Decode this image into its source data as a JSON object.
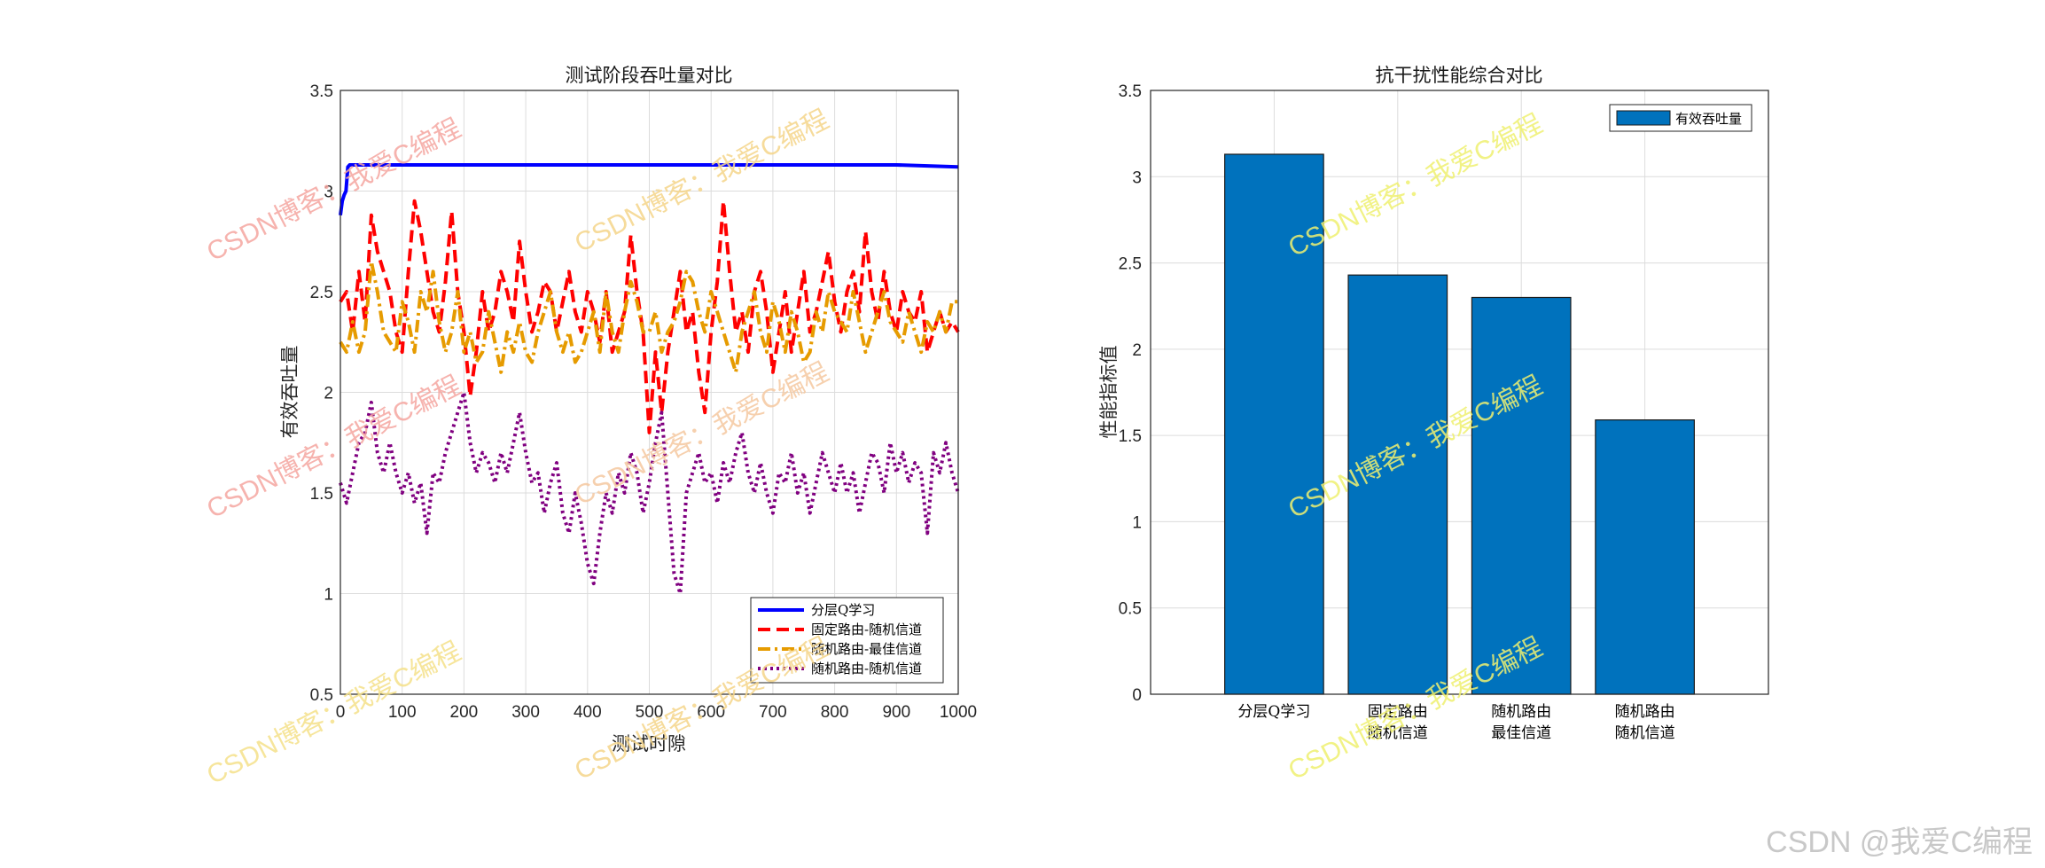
{
  "footer_watermark": "CSDN @我爱C编程",
  "overlay_watermark": "CSDN博客：我爱C编程",
  "chart_data": [
    {
      "type": "line",
      "title": "测试阶段吞吐量对比",
      "xlabel": "测试时隙",
      "ylabel": "有效吞吐量",
      "xlim": [
        0,
        1000
      ],
      "ylim": [
        0.5,
        3.5
      ],
      "xticks": [
        "0",
        "100",
        "200",
        "300",
        "400",
        "500",
        "600",
        "700",
        "800",
        "900",
        "1000"
      ],
      "yticks": [
        "0.5",
        "1",
        "1.5",
        "2",
        "2.5",
        "3",
        "3.5"
      ],
      "grid": true,
      "legend_position": "bottom-right",
      "series": [
        {
          "name": "分层Q学习",
          "color": "#0000ff",
          "style": "solid",
          "x": [
            0,
            3,
            6,
            9,
            12,
            15,
            20,
            40,
            100,
            300,
            500,
            700,
            900,
            1000
          ],
          "y": [
            2.88,
            2.95,
            2.98,
            3.0,
            3.12,
            3.13,
            3.13,
            3.13,
            3.13,
            3.13,
            3.13,
            3.13,
            3.13,
            3.12
          ]
        },
        {
          "name": "固定路由-随机信道",
          "color": "#ff0000",
          "style": "dashed",
          "x": [
            0,
            10,
            20,
            30,
            40,
            50,
            60,
            70,
            80,
            90,
            100,
            110,
            120,
            130,
            140,
            150,
            160,
            170,
            180,
            190,
            200,
            210,
            220,
            230,
            240,
            250,
            260,
            270,
            280,
            290,
            300,
            310,
            320,
            330,
            340,
            350,
            360,
            370,
            380,
            390,
            400,
            410,
            420,
            430,
            440,
            450,
            460,
            470,
            480,
            490,
            500,
            510,
            520,
            530,
            540,
            550,
            560,
            570,
            580,
            590,
            600,
            610,
            620,
            630,
            640,
            650,
            660,
            670,
            680,
            690,
            700,
            710,
            720,
            730,
            740,
            750,
            760,
            770,
            780,
            790,
            800,
            810,
            820,
            830,
            840,
            850,
            860,
            870,
            880,
            890,
            900,
            910,
            920,
            930,
            940,
            950,
            960,
            970,
            980,
            990,
            1000
          ],
          "y": [
            2.45,
            2.5,
            2.3,
            2.6,
            2.35,
            2.88,
            2.7,
            2.6,
            2.5,
            2.3,
            2.2,
            2.6,
            2.95,
            2.8,
            2.6,
            2.4,
            2.3,
            2.55,
            2.9,
            2.5,
            2.3,
            1.98,
            2.2,
            2.5,
            2.3,
            2.4,
            2.6,
            2.5,
            2.35,
            2.75,
            2.5,
            2.3,
            2.4,
            2.55,
            2.5,
            2.3,
            2.45,
            2.6,
            2.4,
            2.3,
            2.5,
            2.4,
            2.25,
            2.5,
            2.2,
            2.3,
            2.4,
            2.78,
            2.5,
            2.3,
            1.8,
            2.2,
            1.9,
            2.2,
            2.4,
            2.6,
            2.3,
            2.4,
            2.1,
            1.9,
            2.3,
            2.55,
            2.95,
            2.6,
            2.3,
            2.4,
            2.2,
            2.5,
            2.6,
            2.4,
            2.1,
            2.3,
            2.5,
            2.2,
            2.4,
            2.6,
            2.3,
            2.4,
            2.55,
            2.7,
            2.45,
            2.3,
            2.5,
            2.6,
            2.4,
            2.8,
            2.5,
            2.35,
            2.6,
            2.4,
            2.3,
            2.5,
            2.4,
            2.35,
            2.5,
            2.2,
            2.3,
            2.4,
            2.3,
            2.35,
            2.3
          ]
        },
        {
          "name": "随机路由-最佳信道",
          "color": "#e69b00",
          "style": "dashdot",
          "x": [
            0,
            10,
            20,
            30,
            40,
            50,
            60,
            70,
            80,
            90,
            100,
            110,
            120,
            130,
            140,
            150,
            160,
            170,
            180,
            190,
            200,
            210,
            220,
            230,
            240,
            250,
            260,
            270,
            280,
            290,
            300,
            310,
            320,
            330,
            340,
            350,
            360,
            370,
            380,
            390,
            400,
            410,
            420,
            430,
            440,
            450,
            460,
            470,
            480,
            490,
            500,
            510,
            520,
            530,
            540,
            550,
            560,
            570,
            580,
            590,
            600,
            610,
            620,
            630,
            640,
            650,
            660,
            670,
            680,
            690,
            700,
            710,
            720,
            730,
            740,
            750,
            760,
            770,
            780,
            790,
            800,
            810,
            820,
            830,
            840,
            850,
            860,
            870,
            880,
            890,
            900,
            910,
            920,
            930,
            940,
            950,
            960,
            970,
            980,
            990,
            1000
          ],
          "y": [
            2.25,
            2.2,
            2.35,
            2.2,
            2.3,
            2.65,
            2.5,
            2.3,
            2.25,
            2.2,
            2.45,
            2.35,
            2.2,
            2.5,
            2.4,
            2.6,
            2.35,
            2.2,
            2.3,
            2.5,
            2.2,
            2.3,
            2.15,
            2.2,
            2.4,
            2.25,
            2.1,
            2.3,
            2.2,
            2.35,
            2.2,
            2.15,
            2.3,
            2.4,
            2.5,
            2.3,
            2.2,
            2.3,
            2.15,
            2.2,
            2.3,
            2.4,
            2.2,
            2.5,
            2.3,
            2.2,
            2.4,
            2.55,
            2.45,
            2.3,
            2.3,
            2.4,
            2.2,
            2.3,
            2.35,
            2.45,
            2.6,
            2.55,
            2.4,
            2.3,
            2.5,
            2.4,
            2.3,
            2.2,
            2.1,
            2.3,
            2.4,
            2.5,
            2.3,
            2.2,
            2.45,
            2.35,
            2.2,
            2.4,
            2.3,
            2.15,
            2.2,
            2.4,
            2.3,
            2.5,
            2.4,
            2.35,
            2.3,
            2.5,
            2.35,
            2.2,
            2.3,
            2.4,
            2.5,
            2.35,
            2.3,
            2.25,
            2.4,
            2.3,
            2.2,
            2.35,
            2.3,
            2.4,
            2.3,
            2.45,
            2.45
          ]
        },
        {
          "name": "随机路由-随机信道",
          "color": "#800080",
          "style": "dotted",
          "x": [
            0,
            10,
            20,
            30,
            40,
            50,
            60,
            70,
            80,
            90,
            100,
            110,
            120,
            130,
            140,
            150,
            160,
            170,
            180,
            190,
            200,
            210,
            220,
            230,
            240,
            250,
            260,
            270,
            280,
            290,
            300,
            310,
            320,
            330,
            340,
            350,
            360,
            370,
            380,
            390,
            400,
            410,
            420,
            430,
            440,
            450,
            460,
            470,
            480,
            490,
            500,
            510,
            520,
            530,
            540,
            550,
            560,
            570,
            580,
            590,
            600,
            610,
            620,
            630,
            640,
            650,
            660,
            670,
            680,
            690,
            700,
            710,
            720,
            730,
            740,
            750,
            760,
            770,
            780,
            790,
            800,
            810,
            820,
            830,
            840,
            850,
            860,
            870,
            880,
            890,
            900,
            910,
            920,
            930,
            940,
            950,
            960,
            970,
            980,
            990,
            1000
          ],
          "y": [
            1.55,
            1.45,
            1.6,
            1.75,
            1.8,
            1.95,
            1.7,
            1.6,
            1.75,
            1.6,
            1.5,
            1.6,
            1.45,
            1.55,
            1.3,
            1.6,
            1.55,
            1.7,
            1.8,
            1.9,
            2.0,
            1.75,
            1.6,
            1.7,
            1.65,
            1.55,
            1.7,
            1.6,
            1.75,
            1.9,
            1.7,
            1.55,
            1.6,
            1.4,
            1.55,
            1.65,
            1.4,
            1.3,
            1.5,
            1.35,
            1.15,
            1.05,
            1.3,
            1.5,
            1.4,
            1.6,
            1.5,
            1.7,
            1.6,
            1.4,
            1.55,
            1.75,
            1.9,
            1.5,
            1.1,
            1.0,
            1.5,
            1.6,
            1.7,
            1.55,
            1.6,
            1.45,
            1.65,
            1.55,
            1.7,
            1.8,
            1.6,
            1.5,
            1.65,
            1.5,
            1.4,
            1.6,
            1.55,
            1.7,
            1.5,
            1.6,
            1.4,
            1.55,
            1.7,
            1.6,
            1.5,
            1.65,
            1.5,
            1.6,
            1.4,
            1.55,
            1.7,
            1.65,
            1.5,
            1.75,
            1.6,
            1.7,
            1.55,
            1.65,
            1.6,
            1.3,
            1.7,
            1.6,
            1.75,
            1.6,
            1.5
          ]
        }
      ]
    },
    {
      "type": "bar",
      "title": "抗干扰性能综合对比",
      "xlabel": "",
      "ylabel": "性能指标值",
      "ylim": [
        0,
        3.5
      ],
      "yticks": [
        "0",
        "0.5",
        "1",
        "1.5",
        "2",
        "2.5",
        "3",
        "3.5"
      ],
      "grid": true,
      "legend_position": "top-right",
      "categories": [
        [
          "分层Q学习"
        ],
        [
          "固定路由",
          "随机信道"
        ],
        [
          "随机路由",
          "最佳信道"
        ],
        [
          "随机路由",
          "随机信道"
        ]
      ],
      "series": [
        {
          "name": "有效吞吐量",
          "color": "#0072bd",
          "values": [
            3.13,
            2.43,
            2.3,
            1.59
          ]
        }
      ]
    }
  ]
}
